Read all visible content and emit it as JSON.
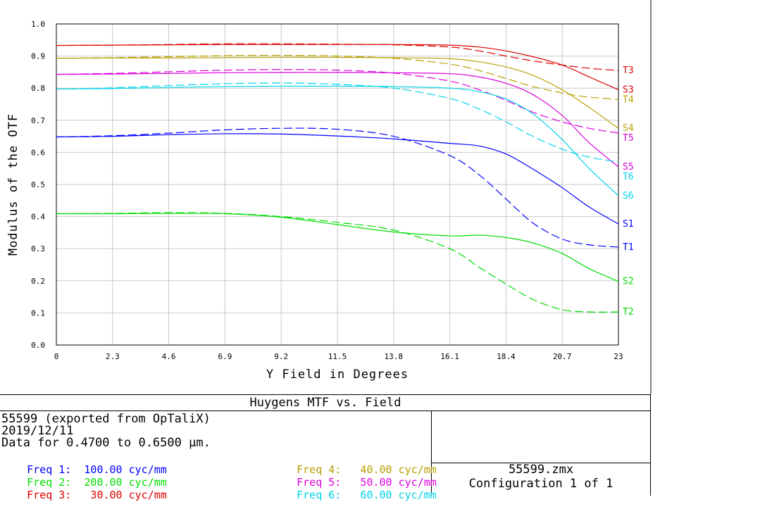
{
  "chart_data": {
    "type": "line",
    "title": "Huygens MTF vs. Field",
    "xlabel": "Y Field in Degrees",
    "ylabel": "Modulus of the OTF",
    "xlim": [
      0,
      23
    ],
    "ylim": [
      0,
      1.0
    ],
    "x_ticks": [
      "0",
      "2.3",
      "4.6",
      "6.9",
      "9.2",
      "11.5",
      "13.8",
      "16.1",
      "18.4",
      "20.7",
      "23"
    ],
    "y_ticks": [
      "0.0",
      "0.1",
      "0.2",
      "0.3",
      "0.4",
      "0.5",
      "0.6",
      "0.7",
      "0.8",
      "0.9",
      "1.0"
    ],
    "x": [
      0,
      2.3,
      4.6,
      6.9,
      9.2,
      11.5,
      13.8,
      16.1,
      17.3,
      18.4,
      19.5,
      20.7,
      21.8,
      23
    ],
    "series": [
      {
        "name": "S1",
        "label": "S1",
        "color": "#0000ff",
        "dashed": false,
        "values": [
          0.648,
          0.65,
          0.655,
          0.658,
          0.657,
          0.651,
          0.642,
          0.628,
          0.62,
          0.595,
          0.548,
          0.49,
          0.43,
          0.377
        ]
      },
      {
        "name": "T1",
        "label": "T1",
        "color": "#0000ff",
        "dashed": true,
        "values": [
          0.648,
          0.652,
          0.66,
          0.67,
          0.675,
          0.672,
          0.65,
          0.59,
          0.53,
          0.455,
          0.38,
          0.33,
          0.312,
          0.305
        ]
      },
      {
        "name": "S2",
        "label": "S2",
        "color": "#00dd00",
        "dashed": false,
        "values": [
          0.409,
          0.409,
          0.41,
          0.409,
          0.398,
          0.375,
          0.352,
          0.34,
          0.342,
          0.335,
          0.318,
          0.285,
          0.238,
          0.198
        ]
      },
      {
        "name": "T2",
        "label": "T2",
        "color": "#00dd00",
        "dashed": true,
        "values": [
          0.409,
          0.41,
          0.412,
          0.41,
          0.4,
          0.382,
          0.358,
          0.3,
          0.242,
          0.19,
          0.142,
          0.11,
          0.103,
          0.103
        ]
      },
      {
        "name": "S3",
        "label": "S3",
        "color": "#dd0000",
        "dashed": false,
        "values": [
          0.933,
          0.934,
          0.935,
          0.936,
          0.936,
          0.936,
          0.936,
          0.934,
          0.928,
          0.916,
          0.898,
          0.872,
          0.835,
          0.795
        ]
      },
      {
        "name": "T3",
        "label": "T3",
        "color": "#dd0000",
        "dashed": true,
        "values": [
          0.933,
          0.934,
          0.936,
          0.938,
          0.938,
          0.937,
          0.935,
          0.928,
          0.916,
          0.9,
          0.885,
          0.872,
          0.862,
          0.855
        ]
      },
      {
        "name": "S4",
        "label": "S4",
        "color": "#b8a000",
        "dashed": false,
        "values": [
          0.893,
          0.894,
          0.894,
          0.895,
          0.896,
          0.896,
          0.895,
          0.892,
          0.882,
          0.866,
          0.84,
          0.795,
          0.74,
          0.675
        ]
      },
      {
        "name": "T4",
        "label": "T4",
        "color": "#b8a000",
        "dashed": true,
        "values": [
          0.893,
          0.895,
          0.898,
          0.901,
          0.902,
          0.9,
          0.893,
          0.875,
          0.855,
          0.83,
          0.805,
          0.785,
          0.772,
          0.765
        ]
      },
      {
        "name": "S5",
        "label": "S5",
        "color": "#dd00dd",
        "dashed": false,
        "values": [
          0.843,
          0.844,
          0.846,
          0.848,
          0.849,
          0.849,
          0.848,
          0.845,
          0.835,
          0.815,
          0.78,
          0.715,
          0.63,
          0.555
        ]
      },
      {
        "name": "T5",
        "label": "T5",
        "color": "#dd00dd",
        "dashed": true,
        "values": [
          0.843,
          0.846,
          0.851,
          0.856,
          0.858,
          0.856,
          0.847,
          0.822,
          0.795,
          0.762,
          0.725,
          0.695,
          0.675,
          0.66
        ]
      },
      {
        "name": "S6",
        "label": "S6",
        "color": "#00d4e8",
        "dashed": false,
        "values": [
          0.797,
          0.799,
          0.802,
          0.805,
          0.806,
          0.806,
          0.805,
          0.8,
          0.789,
          0.766,
          0.72,
          0.64,
          0.55,
          0.465
        ]
      },
      {
        "name": "T6",
        "label": "T6",
        "color": "#00d4e8",
        "dashed": true,
        "values": [
          0.797,
          0.801,
          0.808,
          0.814,
          0.816,
          0.812,
          0.8,
          0.768,
          0.735,
          0.695,
          0.65,
          0.61,
          0.585,
          0.57
        ]
      }
    ],
    "series_label_order": [
      "T3",
      "S3",
      "T4",
      "S4",
      "T5",
      "S5",
      "T6",
      "S6",
      "S1",
      "T1",
      "S2",
      "T2"
    ]
  },
  "footer": {
    "title": "Huygens MTF vs. Field",
    "line1": "55599 (exported from OpTaliX)",
    "line2": "2019/12/11",
    "line3": "Data for 0.4700 to 0.6500 µm.",
    "freqs_left": [
      {
        "label": "Freq 1:",
        "value": "100.00 cyc/mm",
        "color": "#0000ff"
      },
      {
        "label": "Freq 2:",
        "value": "200.00 cyc/mm",
        "color": "#00dd00"
      },
      {
        "label": "Freq 3:",
        "value": " 30.00 cyc/mm",
        "color": "#dd0000"
      }
    ],
    "freqs_right": [
      {
        "label": "Freq 4:",
        "value": " 40.00 cyc/mm",
        "color": "#b8a000"
      },
      {
        "label": "Freq 5:",
        "value": " 50.00 cyc/mm",
        "color": "#dd00dd"
      },
      {
        "label": "Freq 6:",
        "value": " 60.00 cyc/mm",
        "color": "#00d4e8"
      }
    ],
    "filename": "55599.zmx",
    "configuration": "Configuration 1 of 1"
  }
}
